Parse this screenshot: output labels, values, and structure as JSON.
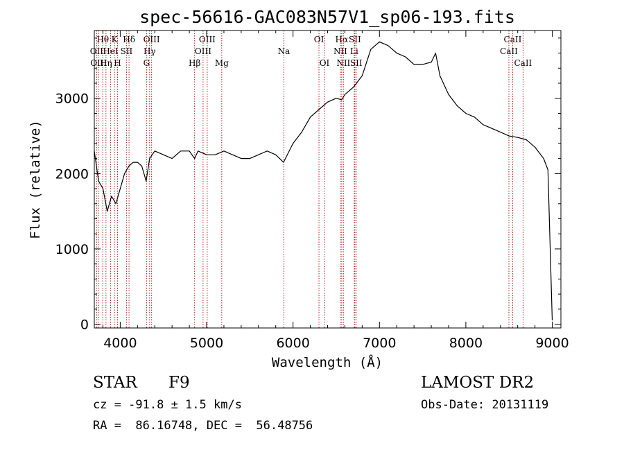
{
  "chart_data": {
    "type": "line",
    "title": "spec-56616-GAC083N57V1_sp06-193.fits",
    "xlabel": "Wavelength (Å)",
    "ylabel": "Flux (relative)",
    "xlim": [
      3700,
      9100
    ],
    "ylim": [
      -50,
      3900
    ],
    "xticks": [
      4000,
      5000,
      6000,
      7000,
      8000,
      9000
    ],
    "yticks": [
      0,
      1000,
      2000,
      3000
    ],
    "grid": false,
    "series": [
      {
        "x": [
          3700,
          3750,
          3800,
          3850,
          3900,
          3950,
          4000,
          4050,
          4100,
          4150,
          4200,
          4250,
          4300,
          4340,
          4400,
          4500,
          4600,
          4700,
          4800,
          4861,
          4900,
          5000,
          5100,
          5200,
          5300,
          5400,
          5500,
          5600,
          5700,
          5800,
          5890,
          6000,
          6100,
          6200,
          6300,
          6400,
          6500,
          6563,
          6600,
          6700,
          6800,
          6900,
          7000,
          7100,
          7200,
          7300,
          7400,
          7500,
          7600,
          7650,
          7700,
          7800,
          7900,
          8000,
          8100,
          8200,
          8300,
          8400,
          8500,
          8600,
          8700,
          8800,
          8900,
          8950,
          9000
        ],
        "y": [
          2300,
          1900,
          1800,
          1500,
          1700,
          1600,
          1800,
          2000,
          2100,
          2150,
          2150,
          2100,
          1900,
          2200,
          2300,
          2250,
          2200,
          2300,
          2300,
          2200,
          2300,
          2250,
          2250,
          2300,
          2250,
          2200,
          2200,
          2250,
          2300,
          2250,
          2150,
          2400,
          2550,
          2750,
          2850,
          2950,
          3000,
          2980,
          3050,
          3150,
          3300,
          3650,
          3750,
          3700,
          3600,
          3550,
          3450,
          3450,
          3480,
          3600,
          3300,
          3050,
          2900,
          2800,
          2750,
          2650,
          2600,
          2550,
          2500,
          2480,
          2450,
          2350,
          2200,
          2050,
          50
        ]
      }
    ],
    "line_markers": [
      {
        "label": "Hθ",
        "x": 3798,
        "row": 1
      },
      {
        "label": "OII",
        "x": 3727,
        "row": 2
      },
      {
        "label": "OIII",
        "x": 3750,
        "row": 3
      },
      {
        "label": "HeI",
        "x": 3889,
        "row": 2
      },
      {
        "label": "K",
        "x": 3934,
        "row": 1
      },
      {
        "label": "Hη",
        "x": 3835,
        "row": 3
      },
      {
        "label": "H",
        "x": 3969,
        "row": 3
      },
      {
        "label": "Hδ",
        "x": 4102,
        "row": 1
      },
      {
        "label": "SII",
        "x": 4072,
        "row": 2
      },
      {
        "label": "OIII",
        "x": 4363,
        "row": 1
      },
      {
        "label": "Hγ",
        "x": 4340,
        "row": 2
      },
      {
        "label": "G",
        "x": 4305,
        "row": 3
      },
      {
        "label": "OIII",
        "x": 5007,
        "row": 1
      },
      {
        "label": "OIII",
        "x": 4959,
        "row": 2
      },
      {
        "label": "Hβ",
        "x": 4861,
        "row": 3
      },
      {
        "label": "Mg",
        "x": 5175,
        "row": 3
      },
      {
        "label": "Na",
        "x": 5894,
        "row": 2
      },
      {
        "label": "OI",
        "x": 6300,
        "row": 1
      },
      {
        "label": "OI",
        "x": 6364,
        "row": 3
      },
      {
        "label": "Hα",
        "x": 6563,
        "row": 1
      },
      {
        "label": "NII",
        "x": 6548,
        "row": 2
      },
      {
        "label": "NII",
        "x": 6583,
        "row": 3
      },
      {
        "label": "SII",
        "x": 6716,
        "row": 1
      },
      {
        "label": "Li",
        "x": 6708,
        "row": 2
      },
      {
        "label": "SII",
        "x": 6731,
        "row": 3
      },
      {
        "label": "CaII",
        "x": 8542,
        "row": 1
      },
      {
        "label": "CaII",
        "x": 8498,
        "row": 2
      },
      {
        "label": "CaII",
        "x": 8662,
        "row": 3
      }
    ],
    "marker_color": "#b22222"
  },
  "info": {
    "class": "STAR",
    "subclass": "F9",
    "survey": "LAMOST DR2",
    "cz": "cz = -91.8 ± 1.5 km/s",
    "obs_date": "Obs-Date: 20131119",
    "radec": "RA =  86.16748, DEC =  56.48756"
  }
}
